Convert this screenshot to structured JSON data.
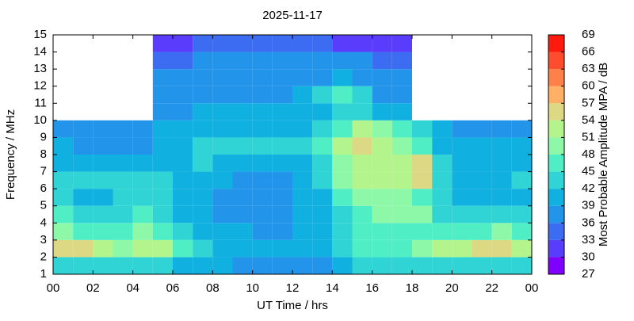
{
  "chart_data": {
    "type": "heatmap",
    "title": "2025-11-17",
    "x_label": "UT Time / hrs",
    "y_label": "Frequency / MHz",
    "colorbar_label": "Most Probable Amplitude MPA / dB",
    "xlim": [
      0,
      24
    ],
    "xticks": [
      {
        "value": 0,
        "label": "00"
      },
      {
        "value": 2,
        "label": "02"
      },
      {
        "value": 4,
        "label": "04"
      },
      {
        "value": 6,
        "label": "06"
      },
      {
        "value": 8,
        "label": "08"
      },
      10,
      12,
      14,
      16,
      18,
      20,
      22,
      {
        "value": 24,
        "label": "00"
      }
    ],
    "ylim": [
      1,
      15
    ],
    "yticks": [
      1,
      2,
      3,
      4,
      5,
      6,
      7,
      8,
      9,
      10,
      11,
      12,
      13,
      14,
      15
    ],
    "clim": [
      27,
      69
    ],
    "cticks": [
      27,
      30,
      33,
      36,
      39,
      42,
      45,
      48,
      51,
      54,
      57,
      60,
      63,
      66,
      69
    ],
    "colorscale": [
      "#8000ff",
      "#5a3cfc",
      "#3c6cf2",
      "#2294ea",
      "#10b0e0",
      "#30d4d4",
      "#50eec4",
      "#8cf8a8",
      "#b4f48c",
      "#dcd884",
      "#ffb064",
      "#ff8048",
      "#ff4c2c",
      "#ff1a0e"
    ],
    "x": [
      0,
      1,
      2,
      3,
      4,
      5,
      6,
      7,
      8,
      9,
      10,
      11,
      12,
      13,
      14,
      15,
      16,
      17,
      18,
      19,
      20,
      21,
      22,
      23
    ],
    "y": [
      1,
      2,
      3,
      4,
      5,
      6,
      7,
      8,
      9,
      10,
      11,
      12,
      13,
      14
    ],
    "z": [
      [
        42,
        42,
        42,
        42,
        42,
        42,
        40,
        40,
        39,
        38,
        38,
        38,
        38,
        38,
        40,
        42,
        42,
        42,
        42,
        42,
        42,
        42,
        42,
        42
      ],
      [
        54,
        54,
        51,
        48,
        51,
        51,
        45,
        42,
        40,
        39,
        39,
        39,
        39,
        40,
        42,
        45,
        45,
        45,
        48,
        51,
        51,
        54,
        54,
        51
      ],
      [
        48,
        45,
        45,
        45,
        48,
        45,
        42,
        40,
        39,
        39,
        38,
        38,
        39,
        40,
        42,
        45,
        45,
        45,
        45,
        45,
        45,
        45,
        48,
        45
      ],
      [
        45,
        42,
        42,
        42,
        45,
        42,
        40,
        39,
        38,
        38,
        38,
        38,
        39,
        39,
        42,
        45,
        48,
        48,
        48,
        42,
        42,
        42,
        42,
        42
      ],
      [
        42,
        40,
        40,
        42,
        42,
        42,
        40,
        39,
        38,
        38,
        38,
        38,
        39,
        40,
        45,
        48,
        48,
        48,
        45,
        42,
        40,
        40,
        40,
        40
      ],
      [
        42,
        42,
        42,
        42,
        42,
        42,
        40,
        40,
        39,
        38,
        38,
        38,
        39,
        42,
        48,
        51,
        51,
        51,
        54,
        42,
        40,
        40,
        40,
        42
      ],
      [
        40,
        40,
        40,
        40,
        40,
        40,
        40,
        42,
        40,
        39,
        39,
        39,
        40,
        42,
        48,
        51,
        51,
        51,
        54,
        42,
        40,
        40,
        40,
        40
      ],
      [
        39,
        38,
        38,
        38,
        38,
        40,
        40,
        42,
        42,
        42,
        42,
        42,
        42,
        45,
        51,
        54,
        51,
        48,
        45,
        40,
        39,
        39,
        39,
        39
      ],
      [
        38,
        38,
        38,
        38,
        38,
        39,
        39,
        40,
        40,
        40,
        40,
        40,
        40,
        42,
        45,
        51,
        48,
        45,
        42,
        39,
        38,
        38,
        38,
        38
      ],
      [
        null,
        null,
        null,
        null,
        null,
        38,
        38,
        39,
        39,
        39,
        39,
        39,
        39,
        40,
        42,
        42,
        40,
        39,
        null,
        null,
        null,
        null,
        null,
        null
      ],
      [
        null,
        null,
        null,
        null,
        null,
        36,
        36,
        38,
        38,
        38,
        38,
        38,
        39,
        42,
        45,
        42,
        38,
        38,
        null,
        null,
        null,
        null,
        null,
        null
      ],
      [
        null,
        null,
        null,
        null,
        null,
        36,
        36,
        36,
        38,
        38,
        38,
        38,
        38,
        38,
        40,
        38,
        38,
        36,
        null,
        null,
        null,
        null,
        null,
        null
      ],
      [
        null,
        null,
        null,
        null,
        null,
        33,
        33,
        36,
        36,
        36,
        36,
        36,
        36,
        36,
        36,
        36,
        33,
        33,
        null,
        null,
        null,
        null,
        null,
        null
      ],
      [
        null,
        null,
        null,
        null,
        null,
        30,
        30,
        33,
        33,
        33,
        33,
        33,
        33,
        33,
        30,
        30,
        30,
        30,
        null,
        null,
        null,
        null,
        null,
        null
      ]
    ]
  }
}
